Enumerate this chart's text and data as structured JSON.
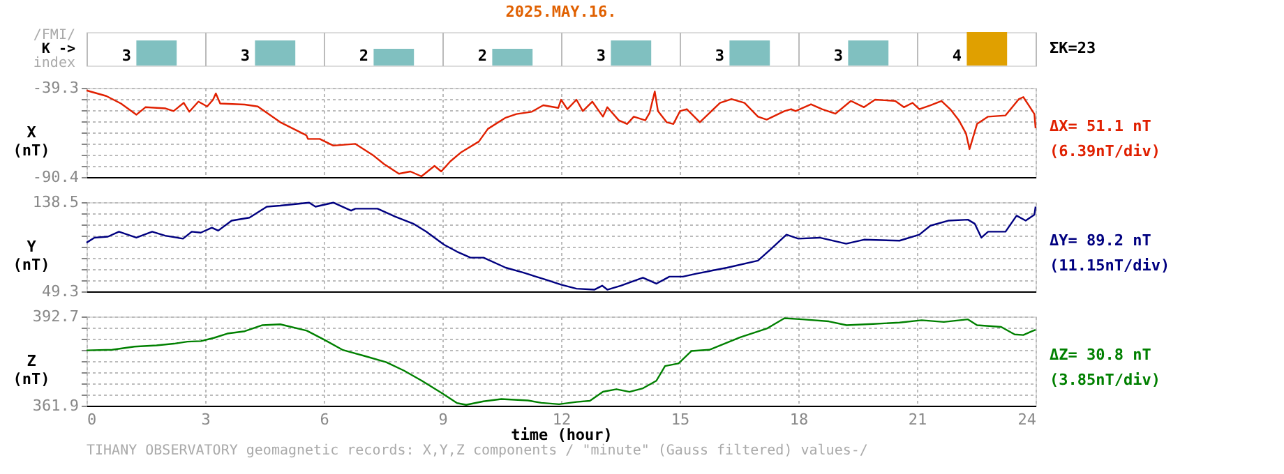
{
  "chart_data": [
    {
      "type": "bar",
      "title": "2025.MAY.16.",
      "categories": [
        null,
        null,
        null,
        null,
        null,
        null,
        null,
        null
      ],
      "values": [
        3,
        3,
        2,
        2,
        3,
        3,
        3,
        4
      ],
      "colors": [
        "#80c0c0",
        "#80c0c0",
        "#80c0c0",
        "#80c0c0",
        "#80c0c0",
        "#80c0c0",
        "#80c0c0",
        "#e0a000"
      ],
      "data_labels": true,
      "tick_labels": false,
      "grid": "x",
      "annotations": [
        "/FMI/",
        "K ->",
        "index",
        "ΣK=23"
      ]
    },
    {
      "type": "line",
      "ylabel": "X (nT)",
      "xlim": [
        0,
        24
      ],
      "xticks": [
        0,
        3,
        6,
        9,
        12,
        15,
        18,
        21,
        24
      ],
      "ylim": [
        -90.4,
        -39.3
      ],
      "yticks": [
        -39.3,
        {
          "value": -45.69,
          "label": null
        },
        {
          "value": -52.08,
          "label": null
        },
        {
          "value": -58.47,
          "label": null
        },
        {
          "value": -64.86,
          "label": null
        },
        {
          "value": -71.25,
          "label": null
        },
        {
          "value": -77.64,
          "label": null
        },
        {
          "value": -84.03,
          "label": null
        },
        -90.4
      ],
      "grid": true,
      "tick_labels": "y",
      "annotations": [
        "ΔX= 51.1 nT",
        "(6.39nT/div)"
      ],
      "series": [
        {
          "color": "#e02000",
          "x": [
            0,
            0.5,
            0.87,
            1.26,
            1.49,
            2.0,
            2.2,
            2.46,
            2.6,
            2.83,
            3.05,
            3.2,
            3.27,
            3.38,
            4.0,
            4.33,
            4.9,
            5.56,
            5.6,
            5.9,
            6.24,
            6.8,
            7.24,
            7.52,
            7.9,
            8.19,
            8.47,
            8.8,
            8.97,
            9.2,
            9.48,
            9.92,
            10.15,
            10.6,
            10.87,
            11.26,
            11.55,
            11.93,
            12.0,
            12.16,
            12.39,
            12.55,
            12.79,
            13.06,
            13.17,
            13.46,
            13.67,
            13.84,
            14.13,
            14.24,
            14.37,
            14.45,
            14.67,
            14.84,
            15.01,
            15.18,
            15.51,
            16.02,
            16.31,
            16.64,
            16.98,
            17.2,
            17.65,
            17.82,
            17.93,
            18.32,
            18.6,
            18.94,
            19.33,
            19.66,
            19.94,
            20.45,
            20.67,
            20.89,
            21.06,
            21.34,
            21.62,
            21.84,
            22.06,
            22.24,
            22.33,
            22.52,
            22.8,
            23.24,
            23.58,
            23.69,
            23.86,
            23.97,
            24.0
          ],
          "values": [
            -40.8,
            -44.0,
            -48.3,
            -54.7,
            -50.4,
            -51.1,
            -52.6,
            -47.9,
            -53.0,
            -47.2,
            -50.0,
            -46.1,
            -42.5,
            -48.3,
            -48.9,
            -50.0,
            -59.0,
            -66.5,
            -68.6,
            -68.6,
            -72.4,
            -71.4,
            -77.8,
            -82.9,
            -88.5,
            -87.2,
            -90.0,
            -84.0,
            -87.2,
            -81.4,
            -76.1,
            -70.1,
            -62.8,
            -56.4,
            -54.3,
            -53.0,
            -49.3,
            -50.8,
            -46.1,
            -51.5,
            -46.1,
            -52.6,
            -47.2,
            -55.8,
            -50.4,
            -57.9,
            -60.0,
            -55.8,
            -57.9,
            -53.6,
            -41.4,
            -52.6,
            -59.0,
            -60.0,
            -52.6,
            -51.5,
            -59.0,
            -47.9,
            -45.7,
            -47.9,
            -55.8,
            -57.5,
            -52.6,
            -51.5,
            -52.6,
            -48.7,
            -51.5,
            -54.1,
            -46.8,
            -50.4,
            -46.1,
            -46.8,
            -50.4,
            -47.9,
            -51.5,
            -49.3,
            -46.8,
            -51.5,
            -57.9,
            -65.4,
            -74.4,
            -60.0,
            -55.8,
            -55.1,
            -45.7,
            -44.6,
            -50.4,
            -54.3,
            -62.4
          ]
        }
      ]
    },
    {
      "type": "line",
      "ylabel": "Y (nT)",
      "xlim": [
        0,
        24
      ],
      "xticks": [
        0,
        3,
        6,
        9,
        12,
        15,
        18,
        21,
        24
      ],
      "ylim": [
        49.3,
        138.5
      ],
      "yticks": [
        138.5,
        {
          "value": 127.35,
          "label": null
        },
        {
          "value": 116.2,
          "label": null
        },
        {
          "value": 105.05,
          "label": null
        },
        {
          "value": 93.9,
          "label": null
        },
        {
          "value": 82.75,
          "label": null
        },
        {
          "value": 71.6,
          "label": null
        },
        {
          "value": 60.45,
          "label": null
        },
        49.3
      ],
      "grid": true,
      "tick_labels": "y",
      "annotations": [
        "ΔY= 89.2 nT",
        "(11.15nT/div)"
      ],
      "series": [
        {
          "color": "#000080",
          "x": [
            0,
            0.2,
            0.54,
            0.82,
            1.26,
            1.66,
            1.99,
            2.44,
            2.66,
            2.89,
            3.17,
            3.33,
            3.67,
            4.12,
            4.56,
            4.9,
            5.63,
            5.79,
            6.24,
            6.69,
            6.8,
            7.36,
            7.81,
            8.26,
            8.59,
            9.04,
            9.37,
            9.71,
            10.04,
            10.6,
            11.05,
            11.61,
            12.0,
            12.39,
            12.84,
            13.04,
            13.17,
            13.51,
            14.07,
            14.41,
            14.74,
            15.08,
            15.42,
            16.2,
            16.98,
            17.32,
            17.7,
            18.0,
            18.54,
            19.21,
            19.66,
            20.56,
            21.06,
            21.34,
            21.79,
            22.29,
            22.46,
            22.63,
            22.8,
            23.24,
            23.52,
            23.75,
            23.97,
            24.0
          ],
          "values": [
            98,
            103,
            104,
            109,
            103,
            109,
            105,
            102,
            109,
            108,
            113,
            110,
            120,
            123,
            134,
            135,
            138,
            134,
            138,
            130,
            132,
            132,
            124,
            117,
            109,
            96,
            89,
            83,
            83,
            73,
            68,
            61,
            56,
            52,
            51,
            55,
            51,
            55,
            63,
            57,
            64,
            64,
            67,
            73,
            80,
            92,
            106,
            102,
            103,
            97,
            101,
            100,
            106,
            115,
            120,
            121,
            117,
            103,
            109,
            109,
            125,
            120,
            126,
            134
          ]
        }
      ]
    },
    {
      "type": "line",
      "ylabel": "Z (nT)",
      "xlabel": "time (hour)",
      "xlim": [
        0,
        24
      ],
      "xticks": [
        0,
        3,
        6,
        9,
        12,
        15,
        18,
        21,
        24
      ],
      "ylim": [
        361.9,
        392.7
      ],
      "yticks": [
        392.7,
        {
          "value": 388.85,
          "label": null
        },
        {
          "value": 385.0,
          "label": null
        },
        {
          "value": 381.15,
          "label": null
        },
        {
          "value": 377.3,
          "label": null
        },
        {
          "value": 373.45,
          "label": null
        },
        {
          "value": 369.6,
          "label": null
        },
        {
          "value": 365.75,
          "label": null
        },
        361.9
      ],
      "grid": true,
      "annotations": [
        "ΔZ= 30.8 nT",
        "(3.85nT/div)",
        "TIHANY OBSERVATORY   geomagnetic records:  X,Y,Z  components   / \"minute\" (Gauss filtered) values-/"
      ],
      "series": [
        {
          "color": "#008000",
          "x": [
            0,
            0.65,
            1.21,
            1.77,
            2.21,
            2.55,
            2.89,
            3.22,
            3.56,
            4.0,
            4.45,
            4.9,
            5.57,
            6.02,
            6.47,
            7.02,
            7.58,
            8.03,
            8.48,
            8.98,
            9.37,
            9.6,
            10.04,
            10.49,
            11.16,
            11.5,
            11.95,
            12.39,
            12.73,
            13.06,
            13.4,
            13.73,
            14.07,
            14.41,
            14.63,
            14.97,
            15.3,
            15.75,
            16.53,
            17.2,
            17.65,
            18.1,
            18.77,
            19.22,
            19.89,
            20.56,
            21.12,
            21.68,
            22.29,
            22.52,
            23.13,
            23.47,
            23.69,
            23.91,
            24.0
          ],
          "values": [
            381.0,
            381.2,
            382.3,
            382.7,
            383.3,
            384.0,
            384.2,
            385.3,
            386.8,
            387.6,
            389.7,
            390.0,
            387.8,
            384.6,
            381.2,
            379.1,
            376.9,
            374.0,
            370.5,
            366.3,
            362.8,
            362.2,
            363.4,
            364.2,
            363.7,
            362.9,
            362.4,
            363.2,
            363.6,
            366.7,
            367.6,
            366.7,
            367.9,
            370.5,
            375.6,
            376.5,
            380.8,
            381.2,
            385.5,
            388.5,
            392.1,
            391.7,
            391.0,
            389.7,
            390.1,
            390.6,
            391.4,
            390.8,
            391.7,
            389.7,
            389.1,
            386.5,
            386.3,
            387.6,
            388.1
          ]
        }
      ]
    }
  ]
}
